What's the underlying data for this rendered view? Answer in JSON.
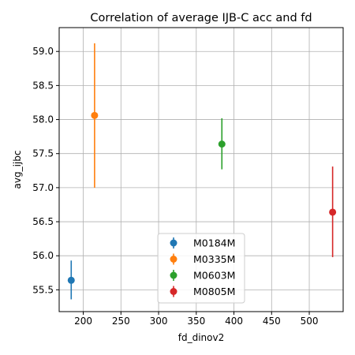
{
  "chart_data": {
    "type": "scatter",
    "title": "Correlation of average IJB-C acc and fd",
    "xlabel": "fd_dinov2",
    "ylabel": "avg_ijbc",
    "xlim": [
      168,
      545
    ],
    "ylim": [
      55.18,
      59.35
    ],
    "xticks": [
      200,
      250,
      300,
      350,
      400,
      450,
      500
    ],
    "yticks": [
      55.5,
      56.0,
      56.5,
      57.0,
      57.5,
      58.0,
      58.5,
      59.0
    ],
    "xtick_labels": [
      "200",
      "250",
      "300",
      "350",
      "400",
      "450",
      "500"
    ],
    "ytick_labels": [
      "55.5",
      "56.0",
      "56.5",
      "57.0",
      "57.5",
      "58.0",
      "58.5",
      "59.0"
    ],
    "grid": true,
    "legend_position": "lower center",
    "series": [
      {
        "name": "M0184M",
        "color": "#1f77b4",
        "x": 184,
        "y": 55.64,
        "yerr_low": 55.36,
        "yerr_high": 55.93
      },
      {
        "name": "M0335M",
        "color": "#ff7f0e",
        "x": 215,
        "y": 58.06,
        "yerr_low": 57.0,
        "yerr_high": 59.12
      },
      {
        "name": "M0603M",
        "color": "#2ca02c",
        "x": 384,
        "y": 57.64,
        "yerr_low": 57.27,
        "yerr_high": 58.02
      },
      {
        "name": "M0805M",
        "color": "#d62728",
        "x": 531,
        "y": 56.64,
        "yerr_low": 55.98,
        "yerr_high": 57.31
      }
    ]
  }
}
